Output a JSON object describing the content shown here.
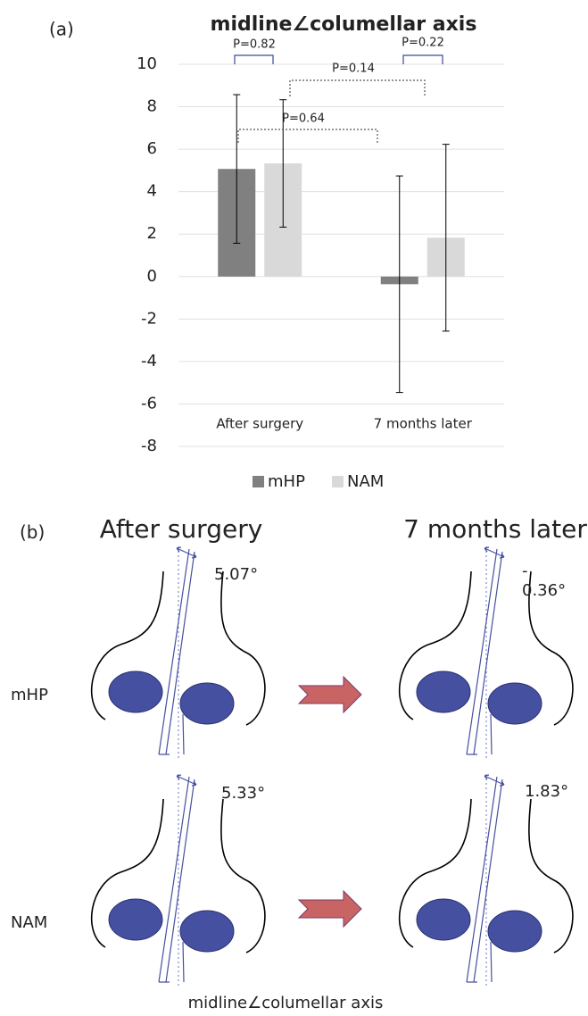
{
  "chart_data": {
    "type": "bar",
    "panel_label": "(a)",
    "title": "midline∠columellar axis",
    "categories": [
      "After surgery",
      "7 months later"
    ],
    "series": [
      {
        "name": "mHP",
        "color": "#808080",
        "values": [
          5.07,
          -0.36
        ],
        "errors": [
          3.5,
          5.1
        ]
      },
      {
        "name": "NAM",
        "color": "#d9d9d9",
        "values": [
          5.33,
          1.83
        ],
        "errors": [
          3.0,
          4.4
        ]
      }
    ],
    "ylim": [
      -8,
      10
    ],
    "yticks": [
      -8,
      -6,
      -4,
      -2,
      0,
      2,
      4,
      6,
      8,
      10
    ],
    "grid": true,
    "annotations": [
      "P=0.82",
      "P=0.22",
      "P=0.14",
      "P=0.64"
    ]
  },
  "diagram": {
    "panel_label": "(b)",
    "columns": [
      "After surgery",
      "7 months later"
    ],
    "rows": [
      "mHP",
      "NAM"
    ],
    "angle_labels": [
      [
        "5.07°",
        "-\n0.36°"
      ],
      [
        "5.33°",
        "1.83°"
      ]
    ],
    "caption": "midline∠columellar axis"
  }
}
